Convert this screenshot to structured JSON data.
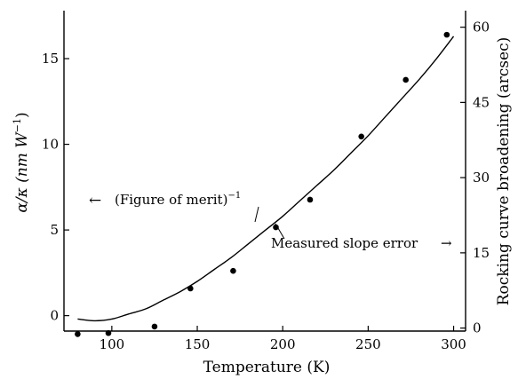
{
  "chart_data": {
    "type": "line",
    "title": "",
    "xlabel": "Temperature (K)",
    "ylabel_left": "α/κ (nm W⁻¹)",
    "ylabel_left_parts": {
      "main": "α/κ (nm W",
      "sup": "−1",
      "close": ")"
    },
    "ylabel_right": "Rocking curve broadening (arcsec)",
    "xlim": [
      72,
      307
    ],
    "ylim_left": [
      -0.9,
      17.8
    ],
    "ylim_right": [
      -0.6,
      63.3
    ],
    "x_ticks": [
      100,
      150,
      200,
      250,
      300
    ],
    "y_ticks_left": [
      0,
      5,
      10,
      15
    ],
    "y_ticks_right": [
      0,
      15,
      30,
      45,
      60
    ],
    "series": [
      {
        "name": "(Figure of merit)⁻¹",
        "kind": "line",
        "axis": "left",
        "x": [
          80,
          90,
          100,
          110,
          120,
          130,
          140,
          150,
          160,
          170,
          180,
          190,
          200,
          210,
          220,
          230,
          240,
          250,
          260,
          270,
          280,
          290,
          300
        ],
        "y": [
          -0.2,
          -0.3,
          -0.2,
          0.1,
          0.4,
          0.9,
          1.4,
          2.0,
          2.7,
          3.4,
          4.2,
          5.0,
          5.8,
          6.7,
          7.6,
          8.5,
          9.5,
          10.5,
          11.6,
          12.7,
          13.8,
          15.0,
          16.3
        ]
      },
      {
        "name": "Measured slope error",
        "kind": "scatter",
        "axis": "right",
        "x": [
          80,
          98,
          125,
          146,
          171,
          196,
          216,
          246,
          272,
          296
        ],
        "y": [
          -1.2,
          -1.0,
          0.3,
          7.9,
          11.4,
          20.1,
          25.6,
          38.2,
          49.5,
          58.5
        ]
      }
    ],
    "annotations": {
      "fom_arrow": "←",
      "fom_label": {
        "main": "(Figure of merit)",
        "sup": "−1"
      },
      "slope_label": "Measured slope error",
      "slope_arrow": "→"
    },
    "grid": false
  }
}
